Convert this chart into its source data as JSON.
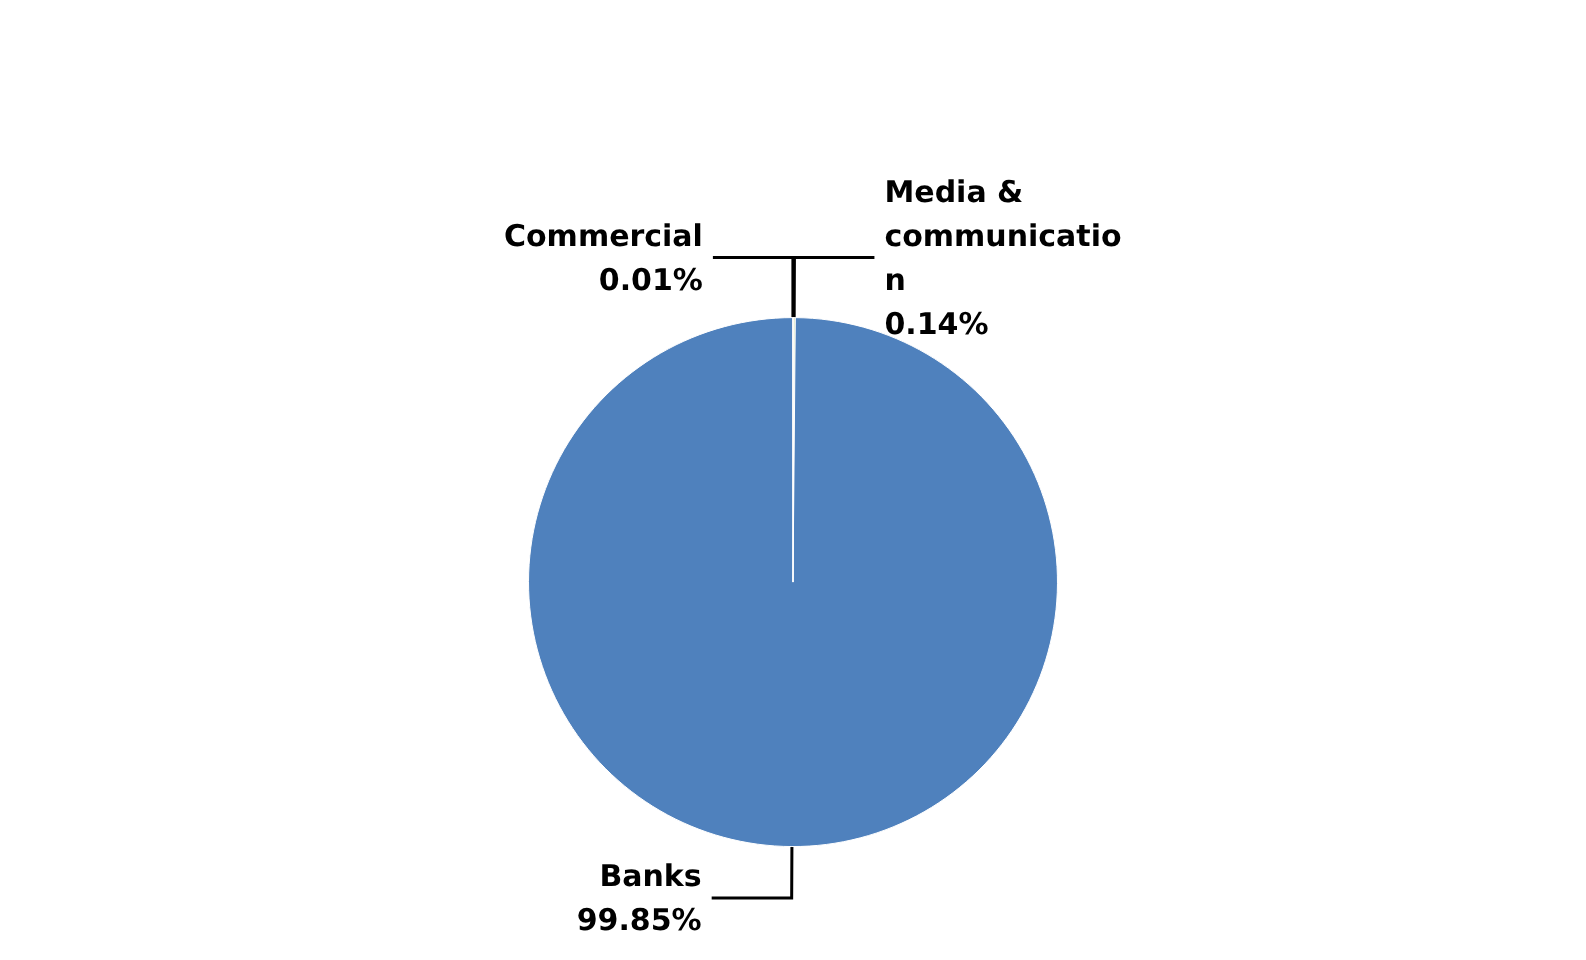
{
  "chart_data": {
    "type": "pie",
    "categories": [
      "Media & communication",
      "Banks",
      "Commercial"
    ],
    "values": [
      0.14,
      99.85,
      0.01
    ],
    "colors": [
      "#d7e4bd",
      "#4f81bd",
      "#c0504d"
    ],
    "value_labels": [
      "0.14%",
      "99.85%",
      "0.01%"
    ],
    "legend": false
  }
}
